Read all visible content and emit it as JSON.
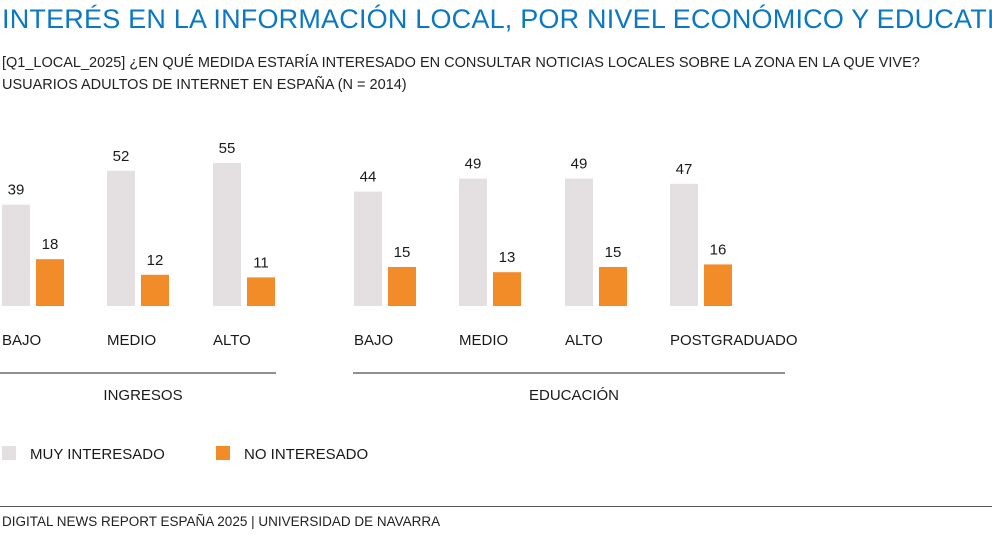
{
  "title": "INTERÉS EN LA INFORMACIÓN LOCAL, POR NIVEL ECONÓMICO Y EDUCATIVO",
  "subtitle_line1": "[Q1_LOCAL_2025] ¿EN QUÉ MEDIDA ESTARÍA INTERESADO EN CONSULTAR NOTICIAS LOCALES SOBRE LA ZONA EN LA QUE VIVE?",
  "subtitle_line2": "USUARIOS ADULTOS DE INTERNET EN ESPAÑA (N = 2014)",
  "footer": "DIGITAL NEWS REPORT ESPAÑA 2025 | UNIVERSIDAD DE NAVARRA",
  "colors": {
    "muy": "#e4dfe0",
    "no": "#f28c28"
  },
  "chart_data": {
    "type": "bar",
    "groups": [
      {
        "label": "INGRESOS",
        "categories": [
          "BAJO",
          "MEDIO",
          "ALTO"
        ]
      },
      {
        "label": "EDUCACIÓN",
        "categories": [
          "BAJO",
          "MEDIO",
          "ALTO",
          "POSTGRADUADO"
        ]
      }
    ],
    "categories": [
      "BAJO",
      "MEDIO",
      "ALTO",
      "BAJO",
      "MEDIO",
      "ALTO",
      "POSTGRADUADO"
    ],
    "series": [
      {
        "name": "MUY INTERESADO",
        "values": [
          39,
          52,
          55,
          44,
          49,
          49,
          47
        ]
      },
      {
        "name": "NO INTERESADO",
        "values": [
          18,
          12,
          11,
          15,
          13,
          15,
          16
        ]
      }
    ],
    "ylim": [
      0,
      60
    ],
    "legend": "bottom-left",
    "grid": false
  }
}
